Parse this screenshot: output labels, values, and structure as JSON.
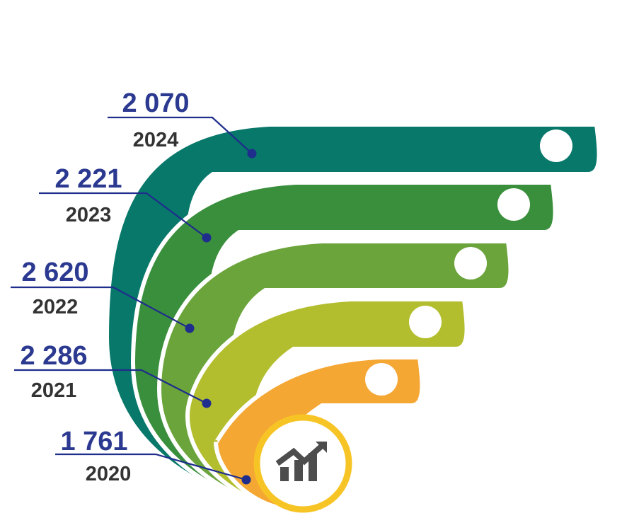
{
  "chart_data": {
    "type": "bar",
    "categories": [
      "2024",
      "2023",
      "2022",
      "2021",
      "2020"
    ],
    "values": [
      2070,
      2221,
      2620,
      2286,
      1761
    ],
    "value_labels": [
      "2 070",
      "2 221",
      "2 620",
      "2 286",
      "1 761"
    ],
    "colors": [
      "#07786a",
      "#3a8f3c",
      "#6aa43a",
      "#b3be2e",
      "#f5a733"
    ],
    "leader_color": "#1f2d8c",
    "center_icon": "rising-chart-icon",
    "center_ring_color": "#f7c425",
    "icon_color": "#4d4d4d"
  }
}
